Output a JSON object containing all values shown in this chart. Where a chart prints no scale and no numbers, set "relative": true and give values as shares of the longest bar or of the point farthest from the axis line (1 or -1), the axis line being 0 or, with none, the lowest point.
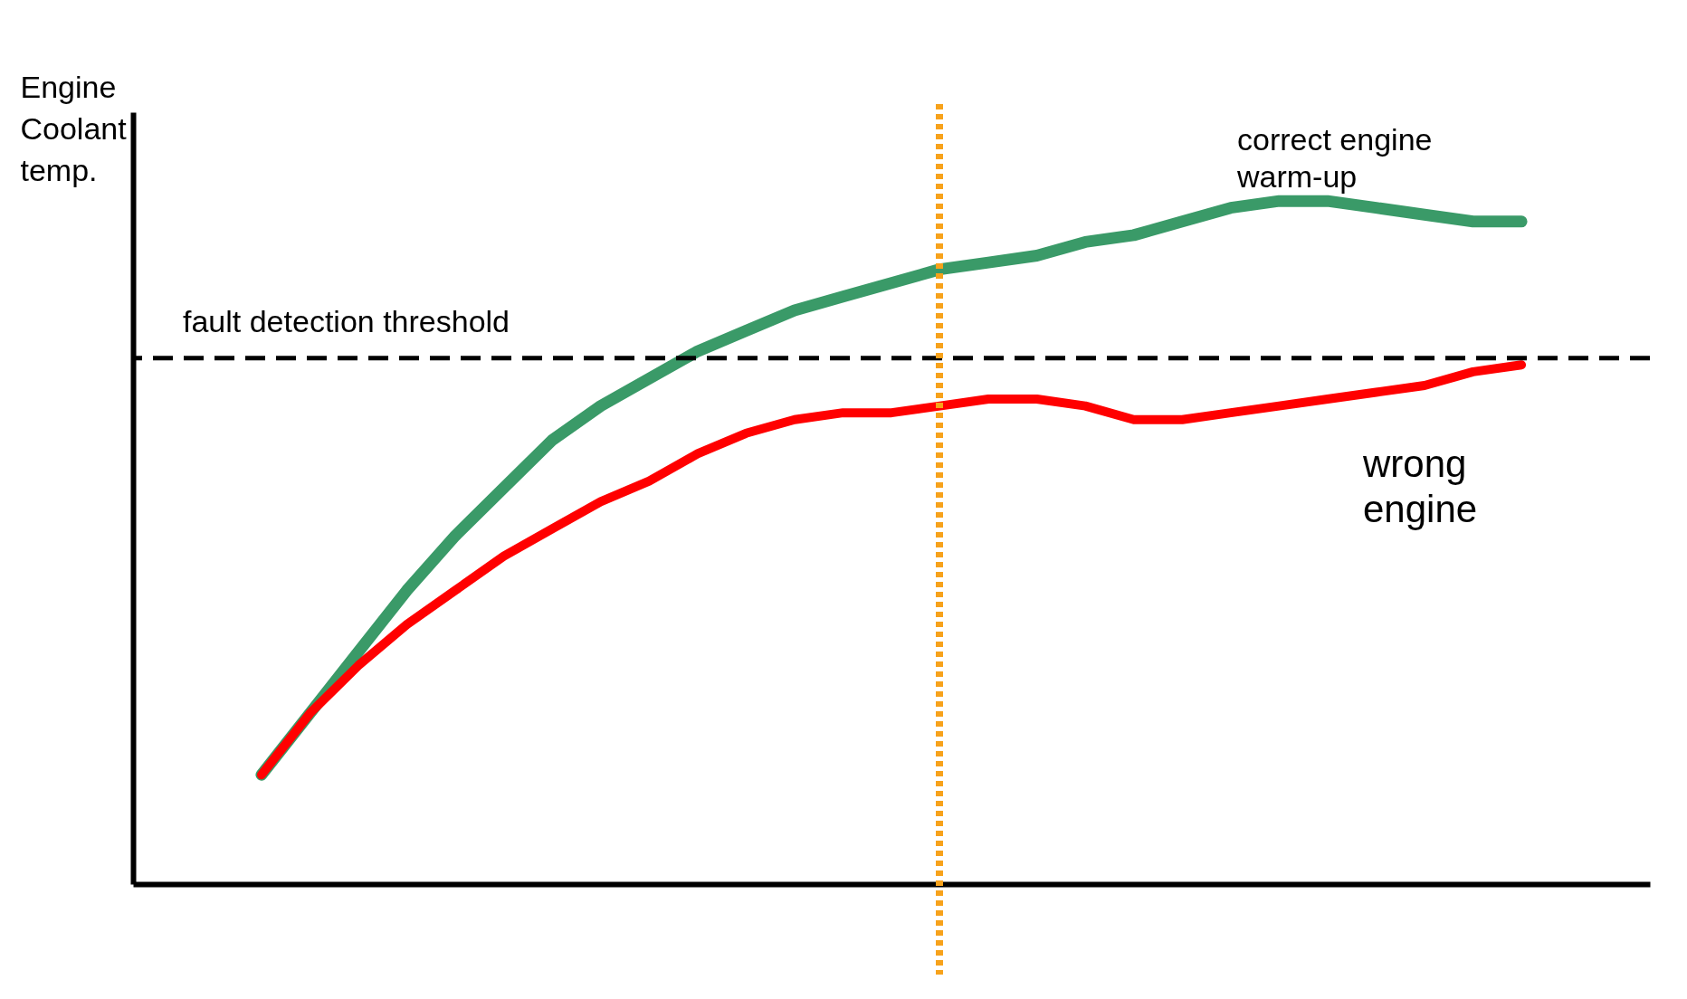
{
  "chart_data": {
    "type": "line",
    "ylabel": "Engine Coolant temp.",
    "relative": true,
    "categories": [
      null,
      null,
      null,
      null,
      null,
      null,
      null,
      null,
      null,
      null,
      null,
      null,
      null,
      null,
      null,
      null,
      null,
      null,
      null,
      null,
      null,
      null,
      null,
      null,
      null,
      null,
      null
    ],
    "series": [
      {
        "name": "correct engine warm-up",
        "color": "#3a9a68",
        "values": [
          0.16,
          0.25,
          0.34,
          0.43,
          0.51,
          0.58,
          0.65,
          0.7,
          0.74,
          0.78,
          0.81,
          0.84,
          0.86,
          0.88,
          0.9,
          0.91,
          0.92,
          0.94,
          0.95,
          0.97,
          0.99,
          1,
          1,
          0.99,
          0.98,
          0.97,
          0.97
        ]
      },
      {
        "name": "wrong engine",
        "color": "#ff0000",
        "values": [
          0.16,
          0.25,
          0.32,
          0.38,
          0.43,
          0.48,
          0.52,
          0.56,
          0.59,
          0.63,
          0.66,
          0.68,
          0.69,
          0.69,
          0.7,
          0.71,
          0.71,
          0.7,
          0.68,
          0.68,
          0.69,
          0.7,
          0.71,
          0.72,
          0.73,
          0.75,
          0.76
        ]
      }
    ],
    "ref_lines": [
      {
        "axis": "y",
        "value": 0.77,
        "label": "fault detection threshold",
        "color": "#000000",
        "line_style": "dashed"
      }
    ]
  }
}
